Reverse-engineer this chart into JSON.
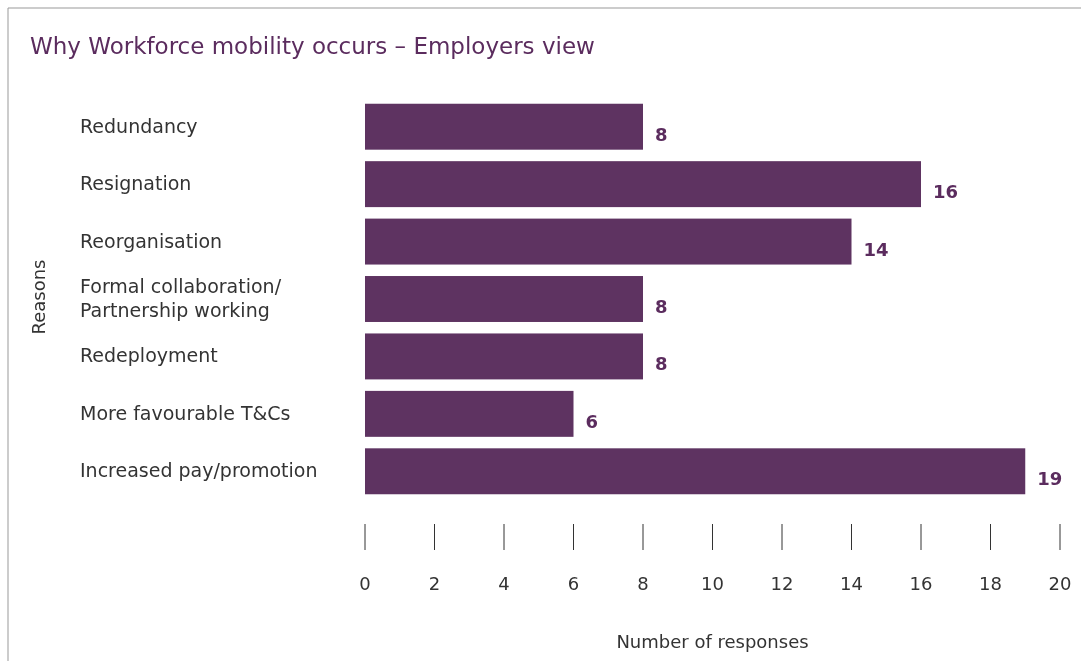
{
  "chart_data": {
    "type": "bar",
    "orientation": "horizontal",
    "title": "Why Workforce mobility occurs – Employers view",
    "xlabel": "Number of responses",
    "ylabel": "Reasons",
    "categories": [
      "Redundancy",
      "Resignation",
      "Reorganisation",
      "Formal collaboration/ Partnership working",
      "Redeployment",
      "More favourable T&Cs",
      "Increased pay/promotion"
    ],
    "values": [
      8,
      16,
      14,
      8,
      8,
      6,
      19
    ],
    "color": "#5e3361",
    "xlim": [
      0,
      20
    ],
    "xticks": [
      0,
      2,
      4,
      6,
      8,
      10,
      12,
      14,
      16,
      18,
      20
    ],
    "data_labels": true
  }
}
